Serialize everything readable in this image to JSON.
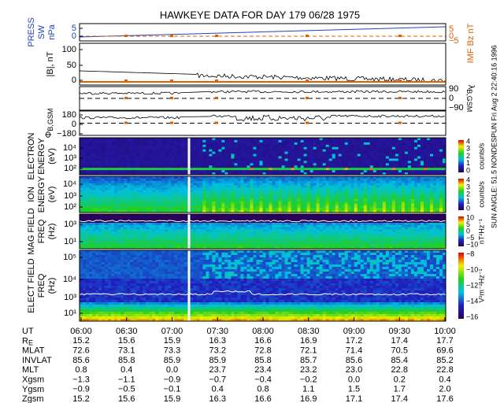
{
  "title": "HAWKEYE DATA FOR DAY 179 06/28 1975",
  "side_text": "SUN ANGLE:  51.5 NONDESPUN   Fri Aug  2 22:40:16 1996",
  "panels": [
    {
      "labels": [
        "PRESS",
        "SW",
        "nPa"
      ],
      "left_ticks": [
        "5",
        "0"
      ],
      "right_label": "IMF Bz nT",
      "right_ticks": [
        "5",
        "0",
        "−5"
      ]
    },
    {
      "labels": [
        "|B|, nT"
      ],
      "left_ticks": [
        "100",
        "50",
        "0"
      ]
    },
    {
      "right_label_main": "λ",
      "right_label_sub": "B,GSM",
      "right_ticks": [
        "90",
        "0",
        "−90"
      ]
    },
    {
      "label_main": "Φ",
      "label_sub": "B,GSM",
      "left_ticks": [
        "180",
        "0",
        "−180"
      ]
    },
    {
      "labels": [
        "ELECTRON",
        "ENERGY",
        "(eV)"
      ],
      "left_ticks": [
        "10⁴",
        "10³",
        "10²"
      ],
      "colorbar_ticks": [
        "4",
        "3",
        "2",
        "1",
        "0"
      ],
      "colorbar_label": "counts/s"
    },
    {
      "labels": [
        "ION",
        "ENERGY",
        "(eV)"
      ],
      "left_ticks": [
        "10⁴",
        "10³",
        "10²"
      ],
      "colorbar_ticks": [
        "4",
        "3",
        "2",
        "1",
        "0"
      ],
      "colorbar_label": "counts/s"
    },
    {
      "labels": [
        "MAG FIELD",
        "FREQ",
        "(Hz)"
      ],
      "left_ticks": [
        "10³",
        "10¹"
      ],
      "colorbar_ticks": [
        "10",
        "5",
        "0",
        "−5",
        "−10"
      ],
      "colorbar_label": "nT²Hz⁻¹"
    },
    {
      "labels": [
        "ELECT FIELD",
        "FREQ",
        "(Hz)"
      ],
      "left_ticks": [
        "10⁵",
        "10⁴",
        "10³",
        "10¹"
      ],
      "colorbar_ticks": [
        "−8",
        "−10",
        "−12",
        "−14",
        "−16"
      ],
      "colorbar_label": "V²m⁻²Hz⁻¹"
    }
  ],
  "table": {
    "rows": [
      {
        "label": "UT",
        "values": [
          "06:00",
          "06:30",
          "07:00",
          "07:30",
          "08:00",
          "08:30",
          "09:00",
          "09:30",
          "10:00"
        ]
      },
      {
        "label": "R",
        "label_sub": "E",
        "values": [
          "15.2",
          "15.6",
          "15.9",
          "16.3",
          "16.6",
          "16.9",
          "17.2",
          "17.4",
          "17.7"
        ]
      },
      {
        "label": "MLAT",
        "values": [
          "72.6",
          "73.1",
          "73.3",
          "73.2",
          "72.8",
          "72.1",
          "71.4",
          "70.5",
          "69.6"
        ]
      },
      {
        "label": "INVLAT",
        "values": [
          "85.6",
          "85.8",
          "85.9",
          "85.9",
          "85.8",
          "85.7",
          "85.6",
          "85.4",
          "85.2"
        ]
      },
      {
        "label": "MLT",
        "values": [
          "0.8",
          "0.4",
          "0.0",
          "23.7",
          "23.4",
          "23.2",
          "23.0",
          "22.8",
          "22.8"
        ]
      },
      {
        "label": "Xgsm",
        "values": [
          "−1.3",
          "−1.1",
          "−0.9",
          "−0.7",
          "−0.4",
          "−0.2",
          "0.0",
          "0.2",
          "0.4"
        ]
      },
      {
        "label": "Ygsm",
        "values": [
          "−0.9",
          "−0.5",
          "−0.1",
          "0.4",
          "0.8",
          "1.1",
          "1.5",
          "1.7",
          "2.0"
        ]
      },
      {
        "label": "Zgsm",
        "values": [
          "15.2",
          "15.6",
          "15.9",
          "16.3",
          "16.6",
          "16.9",
          "17.1",
          "17.4",
          "17.6"
        ]
      }
    ]
  }
}
